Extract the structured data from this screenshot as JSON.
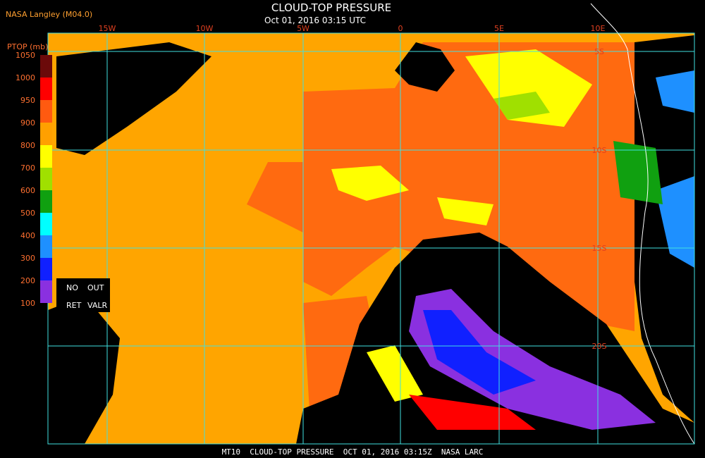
{
  "header": {
    "source": "NASA Langley (M04.0)",
    "title": "CLOUD-TOP PRESSURE",
    "subtitle": "Oct 01, 2016 03:15 UTC"
  },
  "colorbar": {
    "label": "PTOP (mb)",
    "ticks": [
      1050,
      1000,
      950,
      900,
      800,
      700,
      600,
      500,
      400,
      300,
      200,
      100
    ],
    "colors": [
      "#6b0a0a",
      "#ff0000",
      "#ff5a10",
      "#ffa000",
      "#ffff00",
      "#a0e000",
      "#10a010",
      "#00ffff",
      "#1e90ff",
      "#1020ff",
      "#8a30e0"
    ],
    "missing": [
      "NO",
      "OUT",
      "RET",
      "VALR"
    ]
  },
  "map": {
    "longitudes": [
      "15W",
      "10W",
      "5W",
      "0",
      "5E",
      "10E"
    ],
    "latitudes": [
      "5S",
      "10S",
      "15S",
      "20S"
    ]
  },
  "footer": "MT10  CLOUD-TOP PRESSURE  OCT 01, 2016 03:15Z  NASA LARC"
}
